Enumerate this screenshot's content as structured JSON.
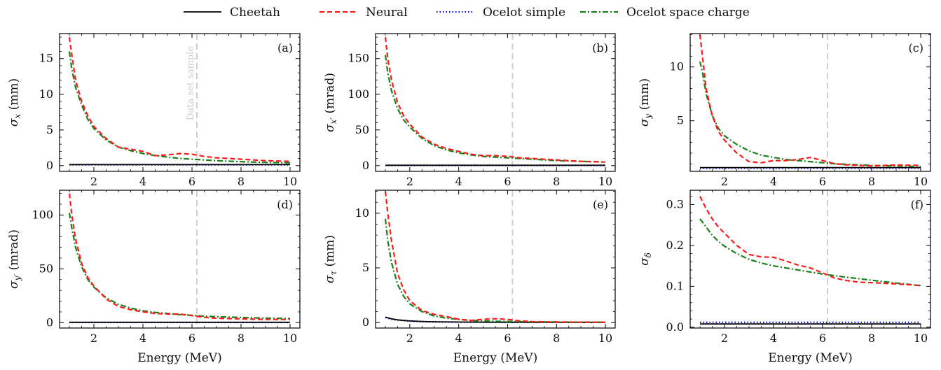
{
  "legend": [
    {
      "label": "Cheetah",
      "color": "#000000",
      "dash": "solid"
    },
    {
      "label": "Neural",
      "color": "#ff1a1a",
      "dash": "dashed"
    },
    {
      "label": "Ocelot simple",
      "color": "#0000ff",
      "dash": "dotted"
    },
    {
      "label": "Ocelot space charge",
      "color": "#1a7f1a",
      "dash": "dashdot"
    }
  ],
  "chart_data": [
    {
      "type": "line",
      "tag": "(a)",
      "xlabel": "",
      "ylabel": "σx (mm)",
      "ylabel_main": "σ",
      "ylabel_sub": "x",
      "ylabel_unit": " (mm)",
      "xlim": [
        0.6,
        10.4
      ],
      "ylim": [
        -0.8,
        18.5
      ],
      "xticks": [
        2,
        4,
        6,
        8,
        10
      ],
      "yticks": [
        0,
        5,
        10,
        15
      ],
      "vline": 6.2,
      "vline_label": "Data set sample",
      "series": [
        {
          "name": "Cheetah",
          "x": [
            1,
            10
          ],
          "y": [
            0.15,
            0.15
          ]
        },
        {
          "name": "Neural",
          "x": [
            1.0,
            1.1,
            1.25,
            1.5,
            1.75,
            2.0,
            2.5,
            3.0,
            3.5,
            4.0,
            4.5,
            5.0,
            5.5,
            6.0,
            6.5,
            7.0,
            8.0,
            9.0,
            10.0
          ],
          "y": [
            18.0,
            15.5,
            12.0,
            9.0,
            7.0,
            5.5,
            3.8,
            2.6,
            2.3,
            2.0,
            1.4,
            1.5,
            1.7,
            1.6,
            1.3,
            1.1,
            0.9,
            0.7,
            0.6
          ]
        },
        {
          "name": "Ocelot simple",
          "x": [
            1,
            10
          ],
          "y": [
            0.12,
            0.12
          ]
        },
        {
          "name": "Ocelot space charge",
          "x": [
            1.0,
            1.1,
            1.25,
            1.5,
            1.75,
            2.0,
            2.5,
            3.0,
            3.5,
            4.0,
            4.5,
            5.0,
            5.5,
            6.0,
            6.5,
            7.0,
            8.0,
            9.0,
            10.0
          ],
          "y": [
            16.0,
            13.5,
            11.0,
            8.5,
            6.5,
            5.2,
            3.6,
            2.6,
            2.1,
            1.7,
            1.4,
            1.2,
            1.0,
            0.9,
            0.8,
            0.7,
            0.55,
            0.45,
            0.4
          ]
        }
      ]
    },
    {
      "type": "line",
      "tag": "(b)",
      "xlabel": "",
      "ylabel": "σx′ (mrad)",
      "ylabel_main": "σ",
      "ylabel_sub": "x′",
      "ylabel_unit": " (mrad)",
      "xlim": [
        0.6,
        10.4
      ],
      "ylim": [
        -8,
        185
      ],
      "xticks": [
        2,
        4,
        6,
        8,
        10
      ],
      "yticks": [
        0,
        50,
        100,
        150
      ],
      "vline": 6.2,
      "series": [
        {
          "name": "Cheetah",
          "x": [
            1,
            10
          ],
          "y": [
            0.5,
            0.5
          ]
        },
        {
          "name": "Neural",
          "x": [
            1.0,
            1.1,
            1.25,
            1.5,
            1.75,
            2.0,
            2.5,
            3.0,
            3.5,
            4.0,
            4.5,
            5.0,
            5.5,
            6.0,
            6.5,
            7.0,
            8.0,
            9.0,
            10.0
          ],
          "y": [
            180,
            150,
            120,
            88,
            70,
            58,
            40,
            30,
            24,
            20,
            16,
            14,
            14,
            13,
            11,
            10,
            8,
            6,
            5
          ]
        },
        {
          "name": "Ocelot simple",
          "x": [
            1,
            10
          ],
          "y": [
            0.3,
            0.3
          ]
        },
        {
          "name": "Ocelot space charge",
          "x": [
            1.0,
            1.1,
            1.25,
            1.5,
            1.75,
            2.0,
            2.5,
            3.0,
            3.5,
            4.0,
            4.5,
            5.0,
            5.5,
            6.0,
            6.5,
            7.0,
            8.0,
            9.0,
            10.0
          ],
          "y": [
            155,
            130,
            105,
            80,
            64,
            54,
            38,
            28,
            22,
            18,
            15,
            13,
            12,
            11,
            10,
            9,
            7,
            6,
            5
          ]
        }
      ]
    },
    {
      "type": "line",
      "tag": "(c)",
      "xlabel": "",
      "ylabel": "σy (mm)",
      "ylabel_main": "σ",
      "ylabel_sub": "y",
      "ylabel_unit": " (mm)",
      "xlim": [
        0.6,
        10.4
      ],
      "ylim": [
        0.3,
        13.1
      ],
      "xticks": [
        2,
        4,
        6,
        8,
        10
      ],
      "yticks": [
        5,
        10
      ],
      "vline": 6.2,
      "series": [
        {
          "name": "Cheetah",
          "x": [
            1,
            10
          ],
          "y": [
            0.65,
            0.65
          ]
        },
        {
          "name": "Neural",
          "x": [
            1.0,
            1.1,
            1.25,
            1.5,
            1.75,
            2.0,
            2.5,
            3.0,
            3.5,
            4.0,
            4.5,
            5.0,
            5.5,
            6.0,
            6.5,
            7.0,
            8.0,
            9.0,
            10.0
          ],
          "y": [
            13.0,
            11.0,
            8.0,
            5.5,
            4.0,
            3.2,
            2.0,
            1.2,
            1.1,
            1.3,
            1.3,
            1.4,
            1.6,
            1.3,
            1.0,
            0.9,
            0.8,
            0.9,
            0.85
          ]
        },
        {
          "name": "Ocelot simple",
          "x": [
            1,
            10
          ],
          "y": [
            0.6,
            0.6
          ]
        },
        {
          "name": "Ocelot space charge",
          "x": [
            1.0,
            1.1,
            1.25,
            1.5,
            1.75,
            2.0,
            2.5,
            3.0,
            3.5,
            4.0,
            4.5,
            5.0,
            5.5,
            6.0,
            6.5,
            7.0,
            8.0,
            9.0,
            10.0
          ],
          "y": [
            10.5,
            9.5,
            7.5,
            5.5,
            4.3,
            3.6,
            2.8,
            2.2,
            1.8,
            1.6,
            1.4,
            1.3,
            1.2,
            1.1,
            1.0,
            0.95,
            0.85,
            0.8,
            0.75
          ]
        }
      ]
    },
    {
      "type": "line",
      "tag": "(d)",
      "xlabel": "",
      "ylabel": "σy′ (mrad)",
      "ylabel_main": "σ",
      "ylabel_sub": "y′",
      "ylabel_unit": " (mrad)",
      "xlim": [
        0.6,
        10.4
      ],
      "ylim": [
        -5,
        123
      ],
      "xticks": [
        2,
        4,
        6,
        8,
        10
      ],
      "yticks": [
        0,
        50,
        100
      ],
      "vline": 6.2,
      "series": [
        {
          "name": "Cheetah",
          "x": [
            1,
            10
          ],
          "y": [
            0.3,
            0.3
          ]
        },
        {
          "name": "Neural",
          "x": [
            1.0,
            1.1,
            1.25,
            1.5,
            1.75,
            2.0,
            2.5,
            3.0,
            3.5,
            4.0,
            4.5,
            5.0,
            5.5,
            6.0,
            6.5,
            7.0,
            8.0,
            9.0,
            10.0
          ],
          "y": [
            120,
            100,
            78,
            55,
            42,
            34,
            22,
            15,
            12,
            10,
            8.5,
            8,
            8,
            6.5,
            5,
            4,
            3.5,
            3,
            3
          ]
        },
        {
          "name": "Ocelot simple",
          "x": [
            1,
            10
          ],
          "y": [
            0.2,
            0.2
          ]
        },
        {
          "name": "Ocelot space charge",
          "x": [
            1.0,
            1.1,
            1.25,
            1.5,
            1.75,
            2.0,
            2.5,
            3.0,
            3.5,
            4.0,
            4.5,
            5.0,
            5.5,
            6.0,
            6.5,
            7.0,
            8.0,
            9.0,
            10.0
          ],
          "y": [
            102,
            88,
            70,
            52,
            40,
            33,
            23,
            17,
            13.5,
            11,
            9.5,
            8.5,
            7.5,
            6.8,
            6,
            5.5,
            4.8,
            4.2,
            3.8
          ]
        }
      ]
    },
    {
      "type": "line",
      "tag": "(e)",
      "xlabel": "Energy (MeV)",
      "ylabel": "στ (mm)",
      "ylabel_main": "σ",
      "ylabel_sub": "τ",
      "ylabel_unit": " (mm)",
      "xlim": [
        0.6,
        10.4
      ],
      "ylim": [
        -0.5,
        12.1
      ],
      "xticks": [
        2,
        4,
        6,
        8,
        10
      ],
      "yticks": [
        0,
        5,
        10
      ],
      "vline": 6.2,
      "series": [
        {
          "name": "Cheetah",
          "x": [
            1.0,
            1.25,
            1.5,
            2.0,
            2.5,
            3.0,
            4.0,
            5.0,
            6.0,
            8.0,
            10.0
          ],
          "y": [
            0.5,
            0.35,
            0.25,
            0.15,
            0.1,
            0.07,
            0.05,
            0.04,
            0.03,
            0.02,
            0.02
          ]
        },
        {
          "name": "Neural",
          "x": [
            1.0,
            1.1,
            1.25,
            1.5,
            1.75,
            2.0,
            2.5,
            3.0,
            3.5,
            4.0,
            4.5,
            5.0,
            5.5,
            6.0,
            6.5,
            7.0,
            8.0,
            9.0,
            10.0
          ],
          "y": [
            12.0,
            10.0,
            7.5,
            4.5,
            3.0,
            2.0,
            1.1,
            0.75,
            0.55,
            0.3,
            0.2,
            0.3,
            0.35,
            0.3,
            0.15,
            0.08,
            0.05,
            0.03,
            0.03
          ]
        },
        {
          "name": "Ocelot simple",
          "x": [
            1.0,
            1.25,
            1.5,
            2.0,
            2.5,
            3.0,
            4.0,
            5.0,
            6.0,
            8.0,
            10.0
          ],
          "y": [
            0.45,
            0.3,
            0.22,
            0.13,
            0.09,
            0.06,
            0.04,
            0.03,
            0.02,
            0.02,
            0.02
          ]
        },
        {
          "name": "Ocelot space charge",
          "x": [
            1.0,
            1.1,
            1.25,
            1.5,
            1.75,
            2.0,
            2.5,
            3.0,
            3.5,
            4.0,
            4.5,
            5.0,
            5.5,
            6.0,
            6.5,
            7.0,
            8.0,
            9.0,
            10.0
          ],
          "y": [
            9.5,
            7.5,
            5.5,
            3.5,
            2.4,
            1.7,
            1.0,
            0.6,
            0.4,
            0.3,
            0.2,
            0.15,
            0.12,
            0.1,
            0.08,
            0.06,
            0.05,
            0.04,
            0.03
          ]
        }
      ]
    },
    {
      "type": "line",
      "tag": "(f)",
      "xlabel": "Energy (MeV)",
      "ylabel": "σδ",
      "ylabel_main": "σ",
      "ylabel_sub": "δ",
      "ylabel_unit": "",
      "xlim": [
        0.6,
        10.4
      ],
      "ylim": [
        -0.002,
        0.335
      ],
      "xticks": [
        2,
        4,
        6,
        8,
        10
      ],
      "yticks": [
        0.0,
        0.1,
        0.2,
        0.3
      ],
      "vline": 6.2,
      "series": [
        {
          "name": "Cheetah",
          "x": [
            1,
            10
          ],
          "y": [
            0.008,
            0.008
          ]
        },
        {
          "name": "Neural",
          "x": [
            1.0,
            1.25,
            1.5,
            1.75,
            2.0,
            2.5,
            3.0,
            3.5,
            4.0,
            4.5,
            5.0,
            5.5,
            6.0,
            6.5,
            7.0,
            7.5,
            8.0,
            9.0,
            10.0
          ],
          "y": [
            0.32,
            0.29,
            0.265,
            0.245,
            0.23,
            0.2,
            0.178,
            0.172,
            0.171,
            0.162,
            0.152,
            0.145,
            0.133,
            0.12,
            0.114,
            0.11,
            0.109,
            0.106,
            0.102
          ]
        },
        {
          "name": "Ocelot simple",
          "x": [
            1,
            10
          ],
          "y": [
            0.012,
            0.012
          ]
        },
        {
          "name": "Ocelot space charge",
          "x": [
            1.0,
            1.25,
            1.5,
            1.75,
            2.0,
            2.5,
            3.0,
            3.5,
            4.0,
            4.5,
            5.0,
            5.5,
            6.0,
            6.5,
            7.0,
            8.0,
            9.0,
            10.0
          ],
          "y": [
            0.265,
            0.245,
            0.225,
            0.21,
            0.198,
            0.18,
            0.166,
            0.157,
            0.15,
            0.145,
            0.14,
            0.135,
            0.13,
            0.126,
            0.122,
            0.115,
            0.108,
            0.102
          ]
        }
      ]
    }
  ]
}
